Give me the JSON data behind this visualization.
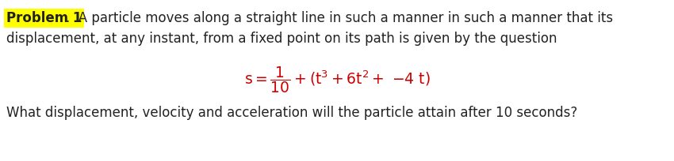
{
  "background_color": "#ffffff",
  "problem_label": "Problem 1",
  "problem_label_bg": "#ffff00",
  "text_color": "#222222",
  "formula_color": "#cc0000",
  "line1_suffix": ".  A particle moves along a straight line in such a manner in such a manner that its",
  "line2": "displacement, at any instant, from a fixed point on its path is given by the question",
  "line3": "What displacement, velocity and acceleration will the particle attain after 10 seconds?",
  "font_size_body": 12.0,
  "font_size_formula": 13.5,
  "fig_width": 8.5,
  "fig_height": 2.04,
  "dpi": 100
}
